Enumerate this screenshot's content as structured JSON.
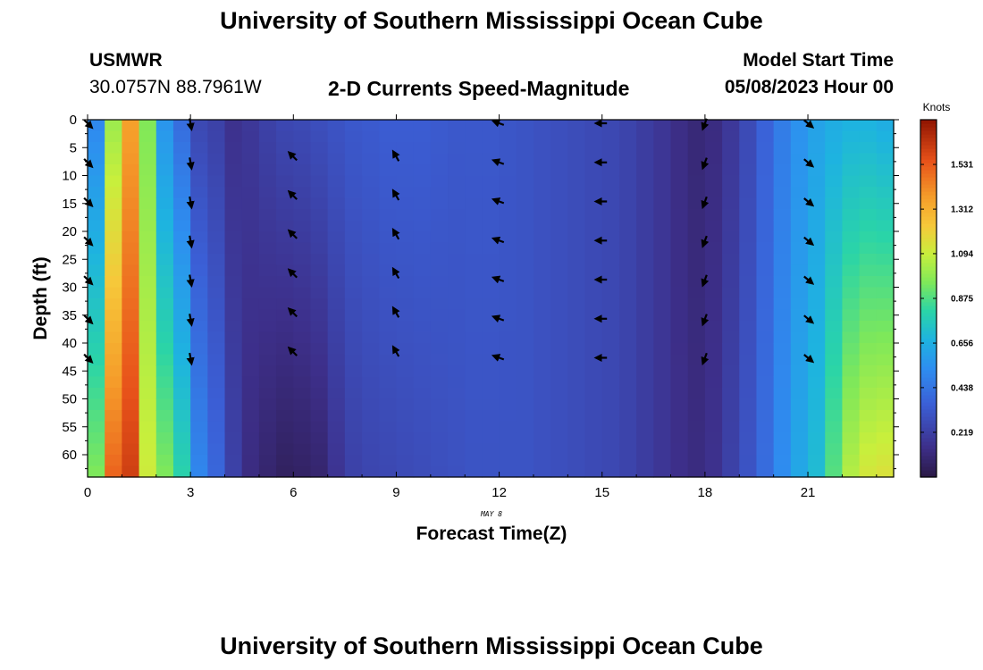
{
  "header": {
    "title": "University of Southern Mississippi Ocean Cube",
    "station_name": "USMWR",
    "station_coords": "30.0757N  88.7961W",
    "plot_title": "2-D Currents Speed-Magnitude",
    "model_label": "Model Start Time",
    "model_time": "05/08/2023 Hour 00"
  },
  "footer": {
    "title": "University of Southern Mississippi Ocean Cube"
  },
  "chart_data": {
    "type": "heatmap",
    "title": "2-D Currents Speed-Magnitude",
    "xlabel": "Forecast Time(Z)",
    "ylabel": "Depth (ft)",
    "date_label": "MAY 8",
    "xlim": [
      0,
      23.5
    ],
    "ylim": [
      0,
      64
    ],
    "y_inverted": true,
    "x_ticks": [
      0,
      3,
      6,
      9,
      12,
      15,
      18,
      21
    ],
    "y_ticks": [
      0,
      5,
      10,
      15,
      20,
      25,
      30,
      35,
      40,
      45,
      50,
      55,
      60
    ],
    "colorbar": {
      "label": "Knots",
      "ticks": [
        0.219,
        0.438,
        0.656,
        0.875,
        1.094,
        1.312,
        1.531
      ],
      "range": [
        0,
        1.75
      ]
    },
    "colormap": [
      [
        0.0,
        "#2b1a48"
      ],
      [
        0.08,
        "#3d2f8a"
      ],
      [
        0.2,
        "#3b5fd6"
      ],
      [
        0.3,
        "#2e8ef0"
      ],
      [
        0.38,
        "#1eb3e0"
      ],
      [
        0.46,
        "#2ad4a8"
      ],
      [
        0.54,
        "#7ee85a"
      ],
      [
        0.62,
        "#c8ef3c"
      ],
      [
        0.7,
        "#f6c83a"
      ],
      [
        0.78,
        "#f59d2a"
      ],
      [
        0.88,
        "#e8521a"
      ],
      [
        1.0,
        "#8c1200"
      ]
    ],
    "columns": [
      {
        "t": 0.0,
        "top": 0.5,
        "bottom": 0.95
      },
      {
        "t": 0.5,
        "top": 1.0,
        "bottom": 1.5
      },
      {
        "t": 1.0,
        "top": 1.35,
        "bottom": 1.6
      },
      {
        "t": 1.5,
        "top": 0.95,
        "bottom": 1.1
      },
      {
        "t": 2.0,
        "top": 0.55,
        "bottom": 0.95
      },
      {
        "t": 2.5,
        "top": 0.4,
        "bottom": 0.8
      },
      {
        "t": 3.0,
        "top": 0.25,
        "bottom": 0.5
      },
      {
        "t": 3.5,
        "top": 0.22,
        "bottom": 0.38
      },
      {
        "t": 4.0,
        "top": 0.15,
        "bottom": 0.22
      },
      {
        "t": 4.5,
        "top": 0.18,
        "bottom": 0.12
      },
      {
        "t": 5.0,
        "top": 0.22,
        "bottom": 0.08
      },
      {
        "t": 5.5,
        "top": 0.25,
        "bottom": 0.05
      },
      {
        "t": 6.0,
        "top": 0.26,
        "bottom": 0.06
      },
      {
        "t": 6.5,
        "top": 0.28,
        "bottom": 0.08
      },
      {
        "t": 7.0,
        "top": 0.3,
        "bottom": 0.16
      },
      {
        "t": 7.5,
        "top": 0.32,
        "bottom": 0.22
      },
      {
        "t": 8.0,
        "top": 0.33,
        "bottom": 0.24
      },
      {
        "t": 8.5,
        "top": 0.34,
        "bottom": 0.25
      },
      {
        "t": 9.0,
        "top": 0.34,
        "bottom": 0.26
      },
      {
        "t": 9.5,
        "top": 0.34,
        "bottom": 0.27
      },
      {
        "t": 10.0,
        "top": 0.33,
        "bottom": 0.28
      },
      {
        "t": 10.5,
        "top": 0.32,
        "bottom": 0.29
      },
      {
        "t": 11.0,
        "top": 0.32,
        "bottom": 0.3
      },
      {
        "t": 11.5,
        "top": 0.32,
        "bottom": 0.3
      },
      {
        "t": 12.0,
        "top": 0.31,
        "bottom": 0.3
      },
      {
        "t": 12.5,
        "top": 0.3,
        "bottom": 0.3
      },
      {
        "t": 13.0,
        "top": 0.29,
        "bottom": 0.29
      },
      {
        "t": 13.5,
        "top": 0.28,
        "bottom": 0.28
      },
      {
        "t": 14.0,
        "top": 0.27,
        "bottom": 0.27
      },
      {
        "t": 14.5,
        "top": 0.26,
        "bottom": 0.26
      },
      {
        "t": 15.0,
        "top": 0.25,
        "bottom": 0.25
      },
      {
        "t": 15.5,
        "top": 0.23,
        "bottom": 0.23
      },
      {
        "t": 16.0,
        "top": 0.2,
        "bottom": 0.2
      },
      {
        "t": 16.5,
        "top": 0.17,
        "bottom": 0.17
      },
      {
        "t": 17.0,
        "top": 0.13,
        "bottom": 0.14
      },
      {
        "t": 17.5,
        "top": 0.1,
        "bottom": 0.12
      },
      {
        "t": 18.0,
        "top": 0.12,
        "bottom": 0.15
      },
      {
        "t": 18.5,
        "top": 0.18,
        "bottom": 0.22
      },
      {
        "t": 19.0,
        "top": 0.26,
        "bottom": 0.3
      },
      {
        "t": 19.5,
        "top": 0.36,
        "bottom": 0.4
      },
      {
        "t": 20.0,
        "top": 0.46,
        "bottom": 0.52
      },
      {
        "t": 20.5,
        "top": 0.54,
        "bottom": 0.62
      },
      {
        "t": 21.0,
        "top": 0.6,
        "bottom": 0.7
      },
      {
        "t": 21.5,
        "top": 0.64,
        "bottom": 0.88
      },
      {
        "t": 22.0,
        "top": 0.66,
        "bottom": 1.05
      },
      {
        "t": 22.5,
        "top": 0.66,
        "bottom": 1.12
      },
      {
        "t": 23.0,
        "top": 0.64,
        "bottom": 1.14
      }
    ],
    "vectors": [
      {
        "t": 0.0,
        "dir_deg": 45,
        "depths": [
          0,
          7,
          14,
          21,
          28,
          35,
          42
        ]
      },
      {
        "t": 3.0,
        "dir_deg": 80,
        "depths": [
          0,
          7,
          14,
          21,
          28,
          35,
          42
        ]
      },
      {
        "t": 6.0,
        "dir_deg": -135,
        "depths": [
          6,
          13,
          20,
          27,
          34,
          41
        ]
      },
      {
        "t": 9.0,
        "dir_deg": -120,
        "depths": [
          6,
          13,
          20,
          27,
          34,
          41
        ]
      },
      {
        "t": 12.0,
        "dir_deg": -160,
        "depths": [
          0,
          7,
          14,
          21,
          28,
          35,
          42
        ]
      },
      {
        "t": 15.0,
        "dir_deg": 180,
        "depths": [
          0,
          7,
          14,
          21,
          28,
          35,
          42
        ]
      },
      {
        "t": 18.0,
        "dir_deg": 110,
        "depths": [
          0,
          7,
          14,
          21,
          28,
          35,
          42
        ]
      },
      {
        "t": 21.0,
        "dir_deg": 40,
        "depths": [
          0,
          7,
          14,
          21,
          28,
          35,
          42
        ]
      }
    ]
  }
}
